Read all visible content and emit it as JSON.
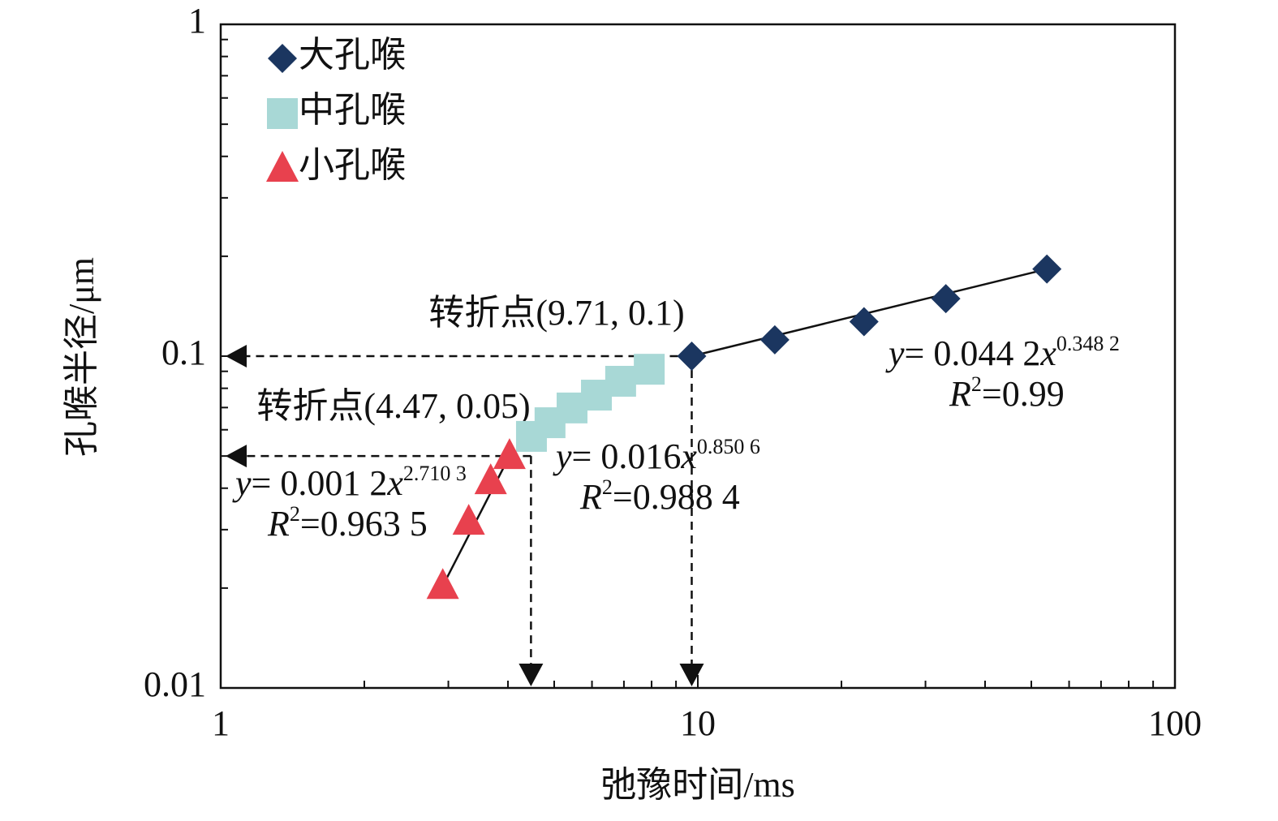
{
  "chart_data": {
    "type": "scatter",
    "x_label": "弛豫时间/ms",
    "y_label": "孔喉半径/μm",
    "log_x": true,
    "log_y": true,
    "xlim": [
      1,
      100
    ],
    "xticks": [
      1,
      10,
      100
    ],
    "ylim": [
      0.01,
      1
    ],
    "yticks": [
      0.01,
      0.1,
      1
    ],
    "legend": "upper left",
    "series": [
      {
        "name": "大孔喉",
        "color": "#1b3660",
        "marker": "diamond",
        "x": [
          9.71,
          14.5,
          22.3,
          33.1,
          53.9
        ],
        "values": [
          0.1,
          0.112,
          0.127,
          0.149,
          0.183
        ],
        "equation": [
          "y",
          "= 0.044 2",
          "x",
          "0.348 2"
        ],
        "r2": [
          "R",
          "2",
          "=0.99"
        ]
      },
      {
        "name": "中孔喉",
        "color": "#a8d8d6",
        "marker": "square",
        "x": [
          4.48,
          4.9,
          5.45,
          6.13,
          6.89,
          7.91
        ],
        "values": [
          0.0573,
          0.063,
          0.0698,
          0.0763,
          0.084,
          0.0913
        ],
        "equation": [
          "y",
          "= 0.016",
          "x",
          "0.850 6"
        ],
        "r2": [
          "R",
          "2",
          "=0.988 4"
        ]
      },
      {
        "name": "小孔喉",
        "color": "#e8414e",
        "marker": "triangle",
        "x": [
          2.92,
          3.31,
          3.68,
          4.03
        ],
        "values": [
          0.0203,
          0.0317,
          0.042,
          0.05
        ],
        "equation": [
          "y",
          "= 0.001 2",
          "x",
          "2.710 3"
        ],
        "r2": [
          "R",
          "2",
          "=0.963 5"
        ]
      }
    ],
    "turning_points": [
      {
        "label": "转折点(9.71, 0.1)",
        "x": 9.71,
        "y": 0.1
      },
      {
        "label": "转折点(4.47, 0.05)",
        "x": 4.47,
        "y": 0.05
      }
    ]
  }
}
